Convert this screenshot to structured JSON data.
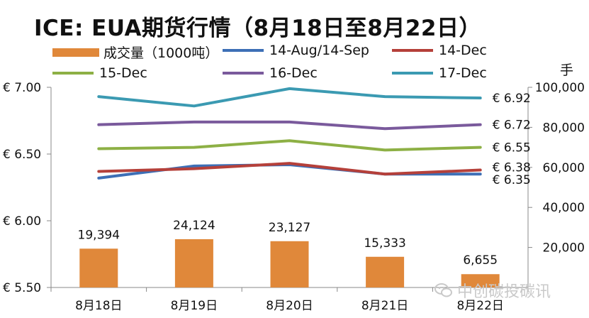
{
  "title": "ICE: EUA期货行情（8月18日至8月22日）",
  "unit_label": "手",
  "watermark": "中创碳投碳讯",
  "chart_data": {
    "type": "bar+line",
    "categories": [
      "8月18日",
      "8月19日",
      "8月20日",
      "8月21日",
      "8月22日"
    ],
    "bar_series": {
      "name": "成交量（1000吨）",
      "color": "#e0883a",
      "values": [
        19394,
        24124,
        23127,
        15333,
        6655
      ],
      "labels": [
        "19,394",
        "24,124",
        "23,127",
        "15,333",
        "6,655"
      ]
    },
    "line_series": [
      {
        "name": "14-Aug/14-Sep",
        "color": "#3d6fb6",
        "values": [
          6.32,
          6.41,
          6.42,
          6.35,
          6.35
        ],
        "end_label": "€ 6.35"
      },
      {
        "name": "14-Dec",
        "color": "#b5403a",
        "values": [
          6.37,
          6.39,
          6.43,
          6.35,
          6.38
        ],
        "end_label": "€ 6.38"
      },
      {
        "name": "15-Dec",
        "color": "#8db045",
        "values": [
          6.54,
          6.55,
          6.6,
          6.53,
          6.55
        ],
        "end_label": "€ 6.55"
      },
      {
        "name": "16-Dec",
        "color": "#7a5a9c",
        "values": [
          6.72,
          6.74,
          6.74,
          6.69,
          6.72
        ],
        "end_label": "€ 6.72"
      },
      {
        "name": "17-Dec",
        "color": "#3b9ab2",
        "values": [
          6.93,
          6.86,
          6.99,
          6.93,
          6.92
        ],
        "end_label": "€ 6.92"
      }
    ],
    "y_left": {
      "min": 5.5,
      "max": 7.0,
      "ticks": [
        7.0,
        6.5,
        6.0,
        5.5
      ],
      "tick_labels": [
        "€ 7.00",
        "€ 6.50",
        "€ 6.00",
        "€ 5.50"
      ]
    },
    "y_right": {
      "min": 0,
      "max": 100000,
      "ticks": [
        100000,
        80000,
        60000,
        40000,
        20000
      ],
      "tick_labels": [
        "100,000",
        "80,000",
        "60,000",
        "40,000",
        "20,000"
      ]
    },
    "grid": false,
    "legend_position": "top"
  }
}
